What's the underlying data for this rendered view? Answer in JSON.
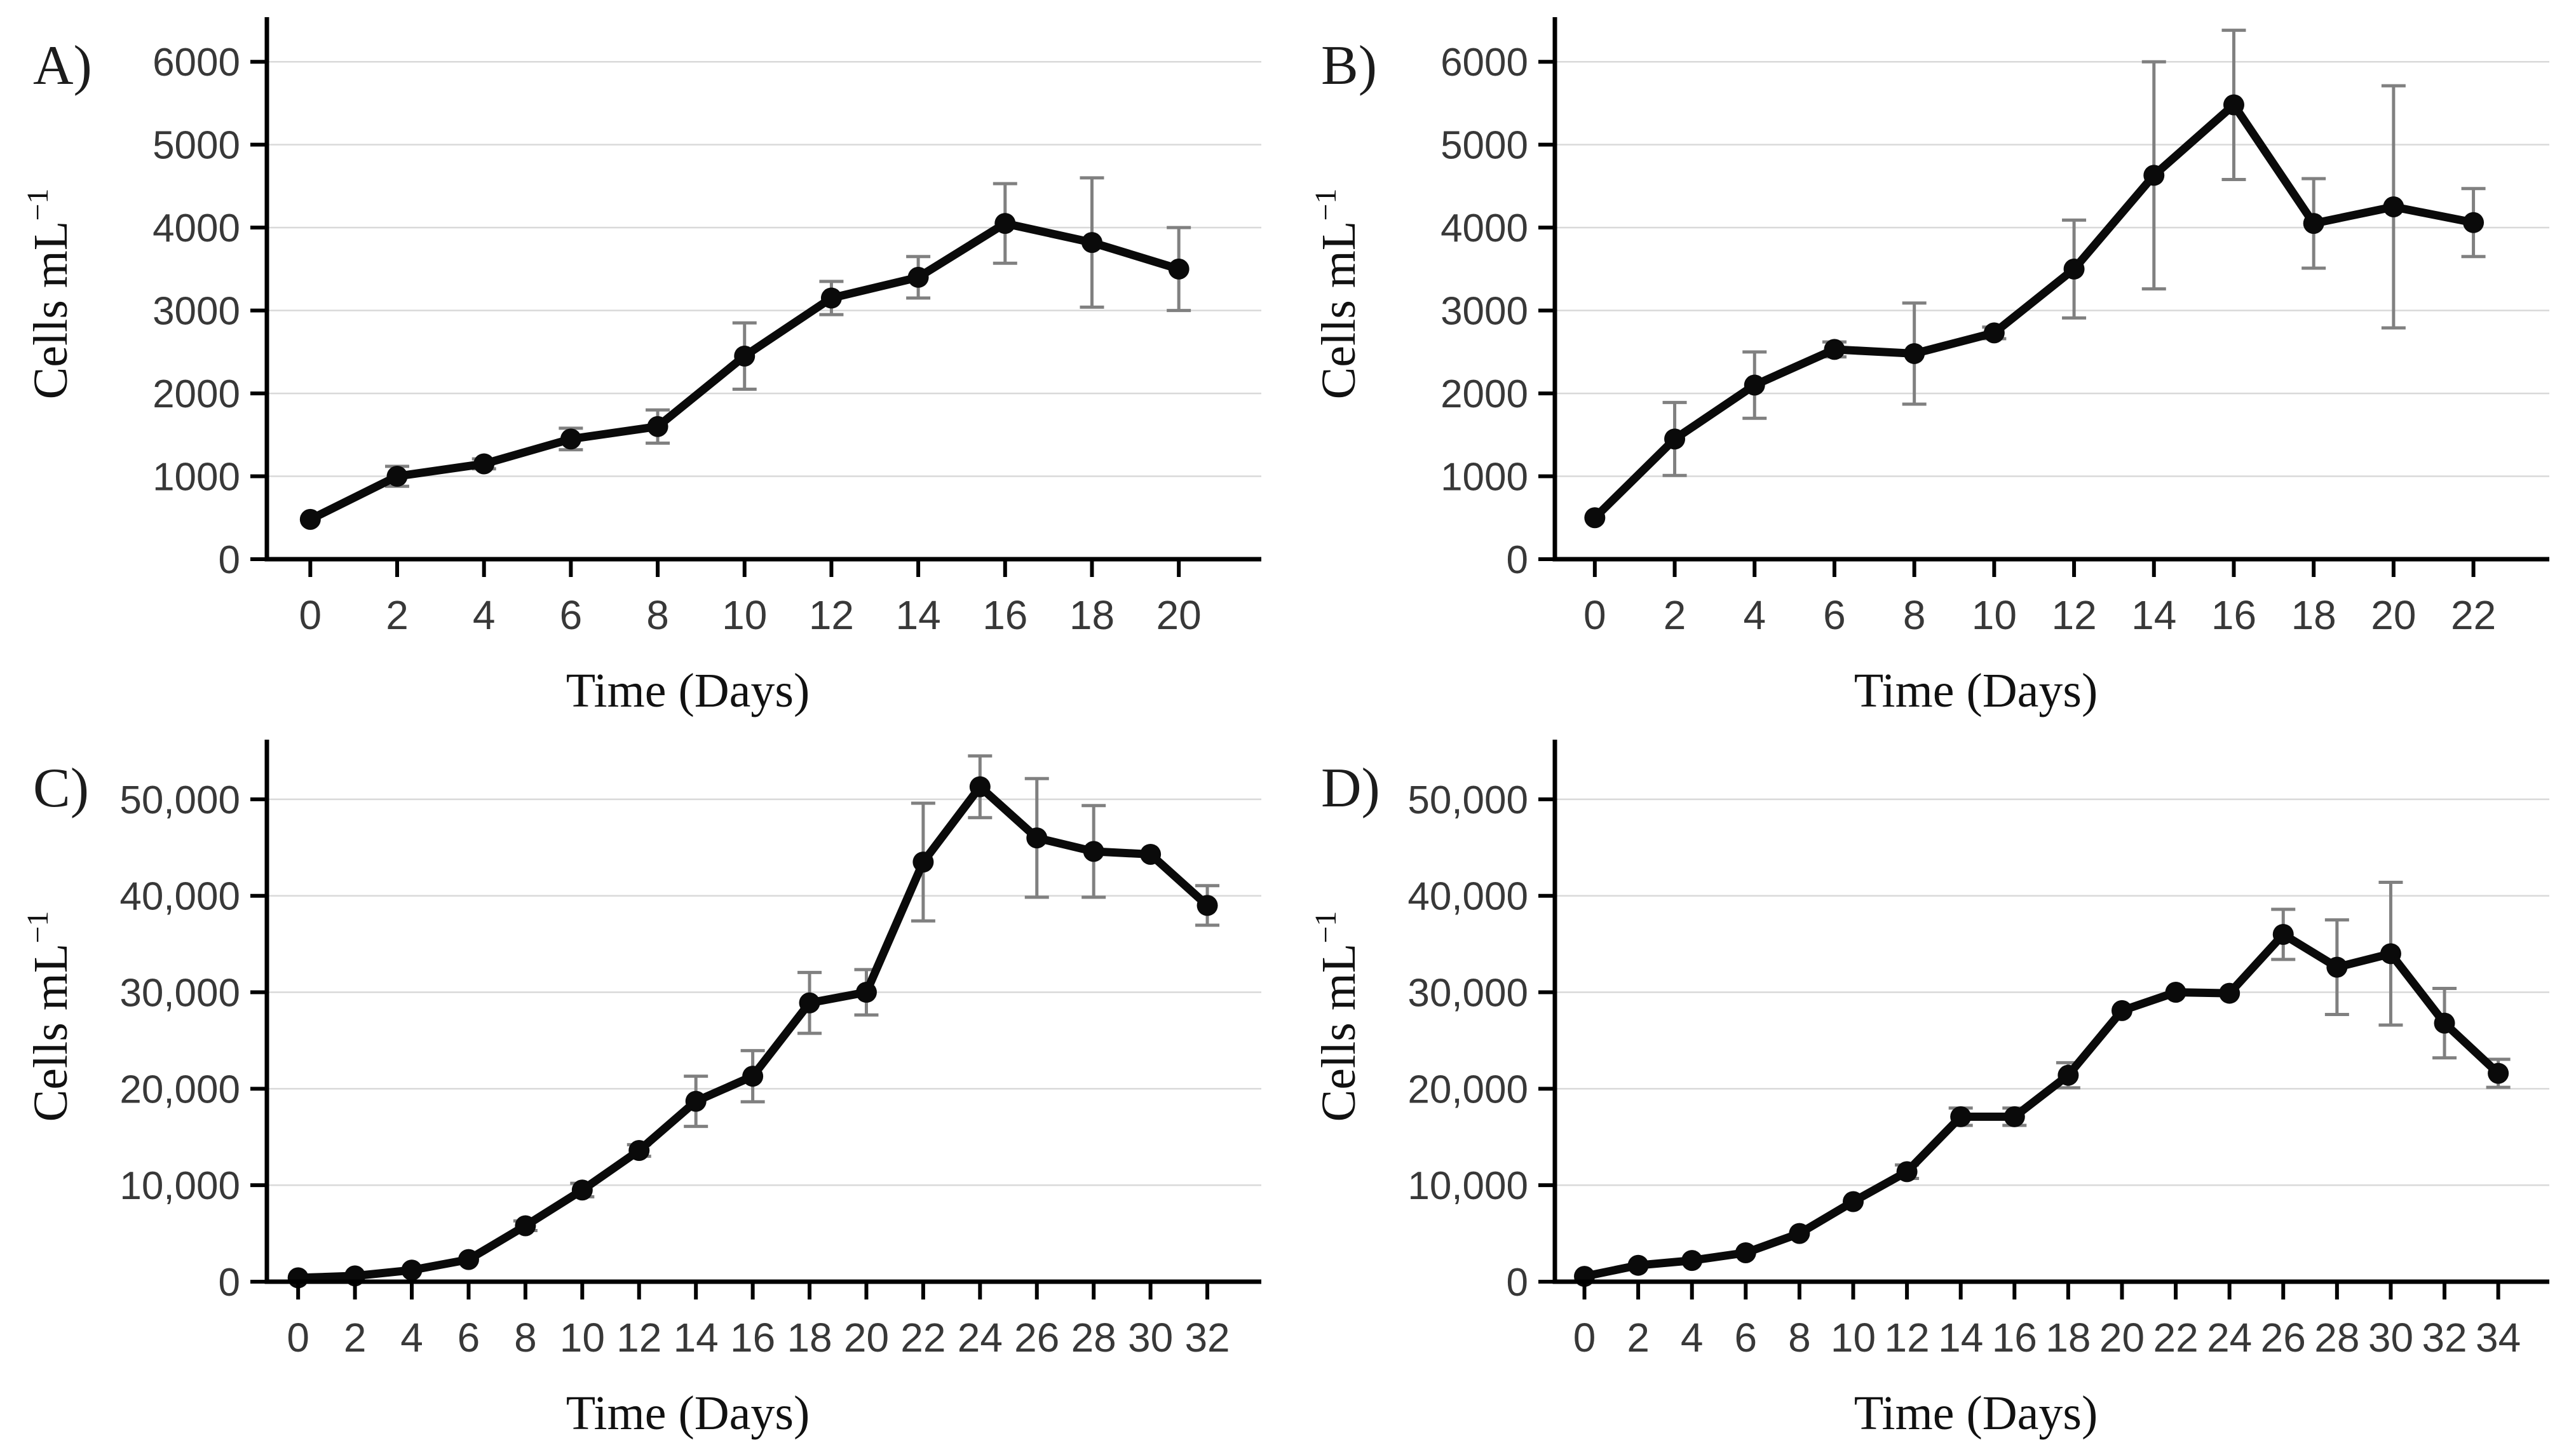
{
  "figure": {
    "xlabel": "Time (Days)",
    "ylabel": "Cells mL",
    "ylabel_exponent": "−1",
    "colors": {
      "series": "#0a0a0a",
      "marker": "#0a0a0a",
      "error_bar": "#808080",
      "gridline": "#d9d9d9",
      "axis": "#000000",
      "tick_text": "#383838",
      "background": "#ffffff"
    }
  },
  "chart_data": [
    {
      "type": "line",
      "panel_label": "A)",
      "title": "",
      "xlabel": "Time (Days)",
      "ylabel": "Cells mL",
      "ylabel_exponent": "−1",
      "x": [
        0,
        2,
        4,
        6,
        8,
        10,
        12,
        14,
        16,
        18,
        20
      ],
      "y": [
        480,
        1000,
        1150,
        1450,
        1600,
        2450,
        3150,
        3400,
        4050,
        3820,
        3500
      ],
      "yerr": [
        0,
        120,
        60,
        130,
        200,
        400,
        200,
        250,
        480,
        780,
        500
      ],
      "xticks": [
        0,
        2,
        4,
        6,
        8,
        10,
        12,
        14,
        16,
        18,
        20
      ],
      "xtick_labels": [
        "0",
        "2",
        "4",
        "6",
        "8",
        "10",
        "12",
        "14",
        "16",
        "18",
        "20"
      ],
      "yticks": [
        0,
        1000,
        2000,
        3000,
        4000,
        5000,
        6000
      ],
      "ytick_labels": [
        "0",
        "1000",
        "2000",
        "3000",
        "4000",
        "5000",
        "6000"
      ],
      "ylim": [
        0,
        6400
      ],
      "xlim": [
        -1.0,
        21.9
      ],
      "grid": true,
      "legend": "none"
    },
    {
      "type": "line",
      "panel_label": "B)",
      "title": "",
      "xlabel": "Time (Days)",
      "ylabel": "Cells mL",
      "ylabel_exponent": "−1",
      "x": [
        0,
        2,
        4,
        6,
        8,
        10,
        12,
        14,
        16,
        18,
        20,
        22
      ],
      "y": [
        500,
        1450,
        2100,
        2530,
        2480,
        2730,
        3500,
        4630,
        5480,
        4050,
        4250,
        4060
      ],
      "yerr": [
        0,
        440,
        400,
        90,
        610,
        70,
        590,
        1370,
        900,
        540,
        1460,
        410
      ],
      "xticks": [
        0,
        2,
        4,
        6,
        8,
        10,
        12,
        14,
        16,
        18,
        20,
        22
      ],
      "xtick_labels": [
        "0",
        "2",
        "4",
        "6",
        "8",
        "10",
        "12",
        "14",
        "16",
        "18",
        "20",
        "22"
      ],
      "yticks": [
        0,
        1000,
        2000,
        3000,
        4000,
        5000,
        6000
      ],
      "ytick_labels": [
        "0",
        "1000",
        "2000",
        "3000",
        "4000",
        "5000",
        "6000"
      ],
      "ylim": [
        0,
        6400
      ],
      "xlim": [
        -1.0,
        23.9
      ],
      "grid": true,
      "legend": "none"
    },
    {
      "type": "line",
      "panel_label": "C)",
      "title": "",
      "xlabel": "Time (Days)",
      "ylabel": "Cells mL",
      "ylabel_exponent": "−1",
      "x": [
        0,
        2,
        4,
        6,
        8,
        10,
        12,
        14,
        16,
        18,
        20,
        22,
        24,
        26,
        28,
        30,
        32
      ],
      "y": [
        400,
        600,
        1200,
        2300,
        5800,
        9500,
        13600,
        18700,
        21300,
        28900,
        30000,
        43500,
        51300,
        46000,
        44600,
        44300,
        39000
      ],
      "yerr": [
        0,
        0,
        0,
        0,
        500,
        700,
        600,
        2600,
        2650,
        3150,
        2350,
        6100,
        3200,
        6150,
        4750,
        0,
        2050
      ],
      "xticks": [
        0,
        2,
        4,
        6,
        8,
        10,
        12,
        14,
        16,
        18,
        20,
        22,
        24,
        26,
        28,
        30,
        32
      ],
      "xtick_labels": [
        "0",
        "2",
        "4",
        "6",
        "8",
        "10",
        "12",
        "14",
        "16",
        "18",
        "20",
        "22",
        "24",
        "26",
        "28",
        "30",
        "32"
      ],
      "yticks": [
        0,
        10000,
        20000,
        30000,
        40000,
        50000
      ],
      "ytick_labels": [
        "0",
        "10,000",
        "20,000",
        "30,000",
        "40,000",
        "50,000"
      ],
      "ylim": [
        0,
        55000
      ],
      "xlim": [
        -1.1,
        33.9
      ],
      "grid": true,
      "legend": "none"
    },
    {
      "type": "line",
      "panel_label": "D)",
      "title": "",
      "xlabel": "Time (Days)",
      "ylabel": "Cells mL",
      "ylabel_exponent": "−1",
      "x": [
        0,
        2,
        4,
        6,
        8,
        10,
        12,
        14,
        16,
        18,
        20,
        22,
        24,
        26,
        28,
        30,
        32,
        34
      ],
      "y": [
        550,
        1700,
        2200,
        3000,
        5000,
        8300,
        11400,
        17100,
        17100,
        21400,
        28100,
        30000,
        29900,
        36000,
        32600,
        34000,
        26800,
        21600
      ],
      "yerr": [
        0,
        0,
        0,
        0,
        0,
        0,
        700,
        900,
        900,
        1300,
        0,
        0,
        0,
        2600,
        4900,
        7400,
        3600,
        1450
      ],
      "xticks": [
        0,
        2,
        4,
        6,
        8,
        10,
        12,
        14,
        16,
        18,
        20,
        22,
        24,
        26,
        28,
        30,
        32,
        34
      ],
      "xtick_labels": [
        "0",
        "2",
        "4",
        "6",
        "8",
        "10",
        "12",
        "14",
        "16",
        "18",
        "20",
        "22",
        "24",
        "26",
        "28",
        "30",
        "32",
        "34"
      ],
      "yticks": [
        0,
        10000,
        20000,
        30000,
        40000,
        50000
      ],
      "ytick_labels": [
        "0",
        "10,000",
        "20,000",
        "30,000",
        "40,000",
        "50,000"
      ],
      "ylim": [
        0,
        55000
      ],
      "xlim": [
        -1.1,
        35.9
      ],
      "grid": true,
      "legend": "none"
    }
  ]
}
